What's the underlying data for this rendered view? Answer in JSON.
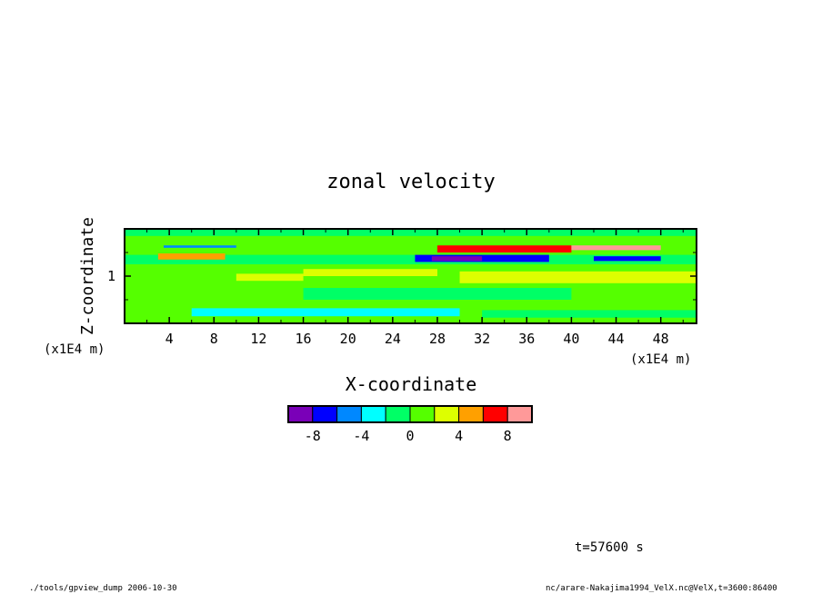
{
  "chart_data": {
    "type": "heatmap",
    "title": "zonal velocity",
    "xlabel": "X-coordinate",
    "ylabel": "Z-coordinate",
    "x_unit": "(x1E4 m)",
    "y_unit": "(x1E4 m)",
    "x_ticks": [
      "4",
      "8",
      "12",
      "16",
      "20",
      "24",
      "28",
      "32",
      "36",
      "40",
      "44",
      "48"
    ],
    "x_tick_values": [
      4,
      8,
      12,
      16,
      20,
      24,
      28,
      32,
      36,
      40,
      44,
      48
    ],
    "xlim": [
      0,
      51.2
    ],
    "y_ticks": [
      "1"
    ],
    "y_tick_values": [
      1.0
    ],
    "ylim": [
      0,
      2.0
    ],
    "colorbar": {
      "levels": [
        -10,
        -8,
        -6,
        -4,
        -2,
        0,
        2,
        4,
        6,
        8,
        10
      ],
      "tick_labels": [
        "-8",
        "-4",
        "0",
        "4",
        "8"
      ],
      "tick_values": [
        -8,
        -4,
        0,
        4,
        8
      ],
      "colors": [
        "#7a00b8",
        "#0000ff",
        "#0088ff",
        "#00ffff",
        "#00ff66",
        "#55ff00",
        "#ddff00",
        "#ffa000",
        "#ff0000",
        "#ff9999"
      ]
    },
    "regions": [
      {
        "z": [
          0.0,
          0.3
        ],
        "x": [
          0.0,
          51.2
        ],
        "value": 1.0
      },
      {
        "z": [
          0.15,
          0.32
        ],
        "x": [
          6.0,
          30.0
        ],
        "value": -2.6
      },
      {
        "z": [
          0.12,
          0.28
        ],
        "x": [
          32.0,
          51.2
        ],
        "value": -1.6
      },
      {
        "z": [
          0.5,
          0.75
        ],
        "x": [
          16.0,
          40.0
        ],
        "value": -1.5
      },
      {
        "z": [
          0.85,
          1.1
        ],
        "x": [
          30.0,
          51.2
        ],
        "value": 2.6
      },
      {
        "z": [
          0.9,
          1.05
        ],
        "x": [
          10.0,
          16.0
        ],
        "value": 2.4
      },
      {
        "z": [
          1.0,
          1.15
        ],
        "x": [
          16.0,
          28.0
        ],
        "value": 2.8
      },
      {
        "z": [
          1.25,
          1.45
        ],
        "x": [
          0.0,
          51.2
        ],
        "value": -1.2
      },
      {
        "z": [
          1.35,
          1.48
        ],
        "x": [
          3.0,
          9.0
        ],
        "value": 5.5
      },
      {
        "z": [
          1.3,
          1.45
        ],
        "x": [
          26.0,
          38.0
        ],
        "value": -6.5
      },
      {
        "z": [
          1.32,
          1.42
        ],
        "x": [
          27.5,
          32.0
        ],
        "value": -9.0
      },
      {
        "z": [
          1.32,
          1.42
        ],
        "x": [
          42.0,
          48.0
        ],
        "value": -7.0
      },
      {
        "z": [
          1.5,
          1.7
        ],
        "x": [
          28.0,
          40.0
        ],
        "value": 7.0
      },
      {
        "z": [
          1.55,
          1.7
        ],
        "x": [
          40.0,
          48.0
        ],
        "value": 9.0
      },
      {
        "z": [
          1.58,
          1.68
        ],
        "x": [
          41.5,
          47.5
        ],
        "value": 11.0
      },
      {
        "z": [
          1.6,
          1.75
        ],
        "x": [
          3.5,
          10.0
        ],
        "value": -4.5
      },
      {
        "z": [
          1.65,
          1.85
        ],
        "x": [
          0.0,
          51.2
        ],
        "value": 1.5
      },
      {
        "z": [
          1.85,
          2.0
        ],
        "x": [
          0.0,
          51.2
        ],
        "value": -0.5
      }
    ]
  },
  "footer": {
    "time": "t=57600 s",
    "left_note": "./tools/gpview_dump 2006-10-30",
    "right_note": "nc/arare-Nakajima1994_VelX.nc@VelX,t=3600:86400"
  }
}
